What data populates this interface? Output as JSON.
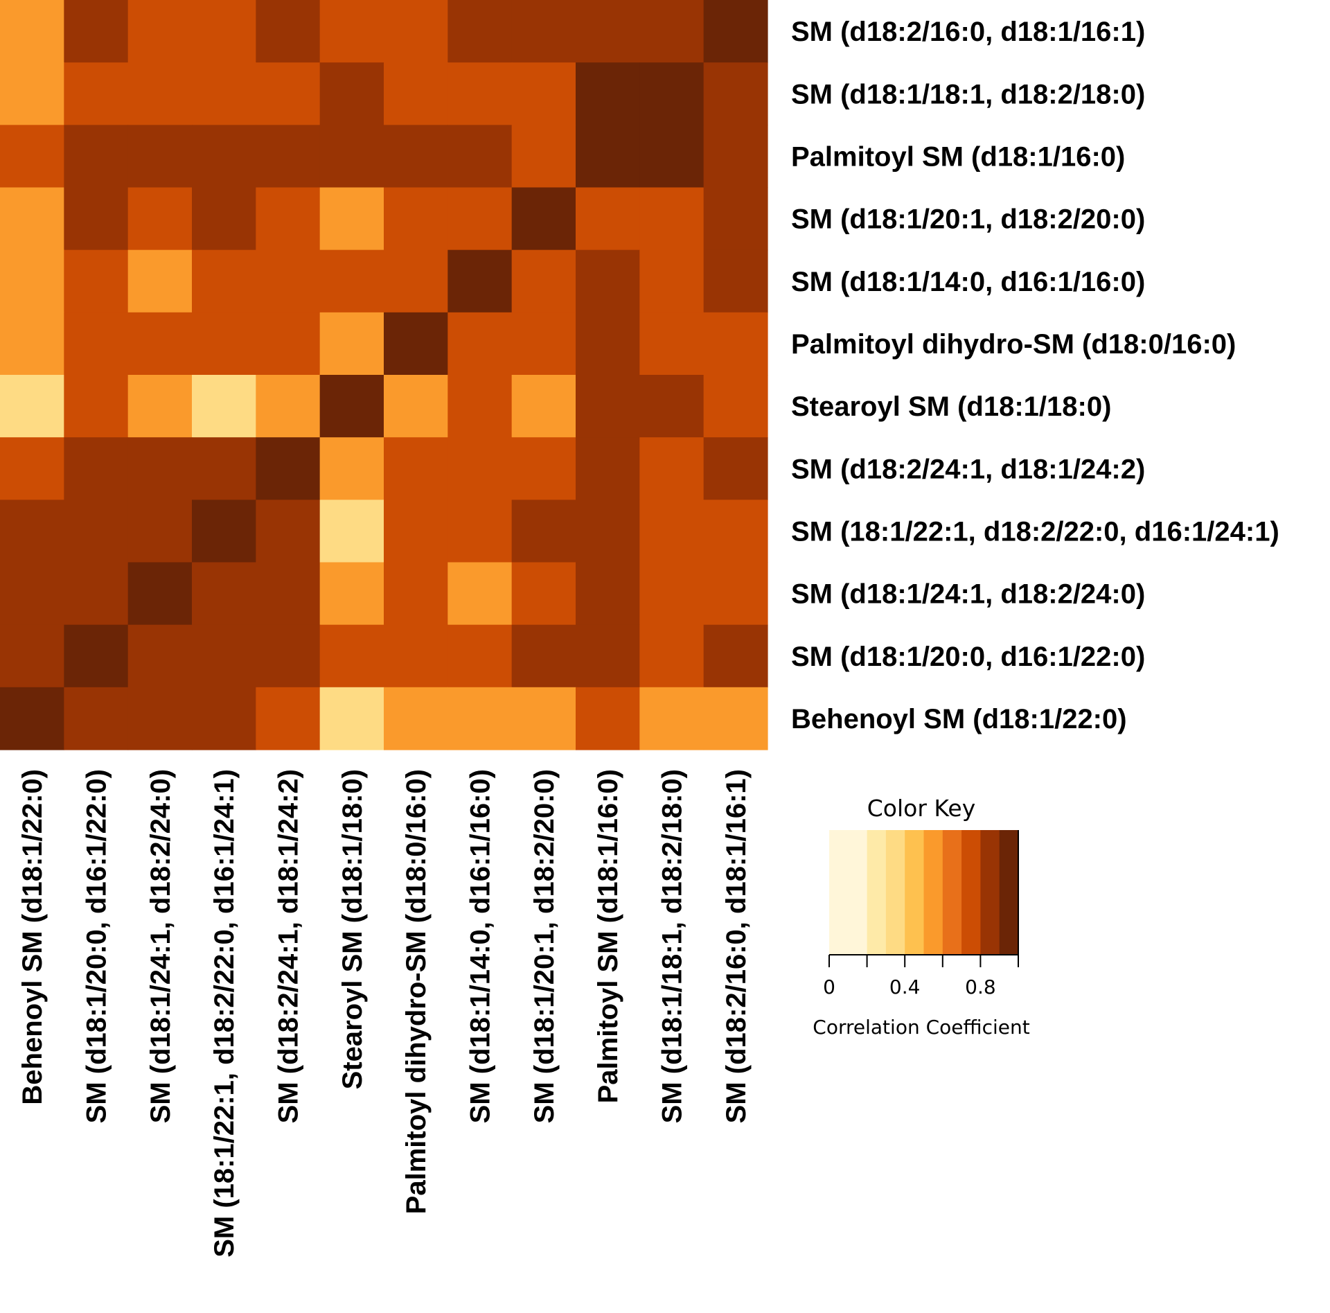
{
  "chart_data": {
    "type": "heatmap",
    "rows": [
      "SM (d18:2/16:0, d18:1/16:1)",
      "SM (d18:1/18:1, d18:2/18:0)",
      "Palmitoyl SM (d18:1/16:0)",
      "SM (d18:1/20:1, d18:2/20:0)",
      "SM (d18:1/14:0, d16:1/16:0)",
      "Palmitoyl dihydro-SM (d18:0/16:0)",
      "Stearoyl SM (d18:1/18:0)",
      "SM (d18:2/24:1, d18:1/24:2)",
      "SM (18:1/22:1, d18:2/22:0, d16:1/24:1)",
      "SM (d18:1/24:1, d18:2/24:0)",
      "SM (d18:1/20:0, d16:1/22:0)",
      "Behenoyl SM (d18:1/22:0)"
    ],
    "columns": [
      "Behenoyl SM (d18:1/22:0)",
      "SM (d18:1/20:0, d16:1/22:0)",
      "SM (d18:1/24:1, d18:2/24:0)",
      "SM (18:1/22:1, d18:2/22:0, d16:1/24:1)",
      "SM (d18:2/24:1, d18:1/24:2)",
      "Stearoyl SM (d18:1/18:0)",
      "Palmitoyl dihydro-SM (d18:0/16:0)",
      "SM (d18:1/14:0, d16:1/16:0)",
      "SM (d18:1/20:1, d18:2/20:0)",
      "Palmitoyl SM (d18:1/16:0)",
      "SM (d18:1/18:1, d18:2/18:0)",
      "SM (d18:2/16:0, d18:1/16:1)"
    ],
    "values": [
      [
        0.6,
        0.85,
        0.75,
        0.75,
        0.85,
        0.75,
        0.75,
        0.85,
        0.85,
        0.85,
        0.85,
        0.95
      ],
      [
        0.6,
        0.75,
        0.75,
        0.75,
        0.75,
        0.85,
        0.75,
        0.75,
        0.75,
        0.95,
        0.95,
        0.85
      ],
      [
        0.75,
        0.85,
        0.85,
        0.85,
        0.85,
        0.85,
        0.85,
        0.85,
        0.75,
        0.95,
        0.95,
        0.85
      ],
      [
        0.6,
        0.85,
        0.75,
        0.85,
        0.75,
        0.6,
        0.75,
        0.75,
        0.95,
        0.75,
        0.75,
        0.85
      ],
      [
        0.6,
        0.75,
        0.6,
        0.75,
        0.75,
        0.75,
        0.75,
        0.95,
        0.75,
        0.85,
        0.75,
        0.85
      ],
      [
        0.6,
        0.75,
        0.75,
        0.75,
        0.75,
        0.6,
        0.95,
        0.75,
        0.75,
        0.85,
        0.75,
        0.75
      ],
      [
        0.45,
        0.75,
        0.6,
        0.45,
        0.6,
        0.95,
        0.6,
        0.75,
        0.6,
        0.85,
        0.85,
        0.75
      ],
      [
        0.75,
        0.85,
        0.85,
        0.85,
        0.95,
        0.6,
        0.75,
        0.75,
        0.75,
        0.85,
        0.75,
        0.85
      ],
      [
        0.85,
        0.85,
        0.85,
        0.95,
        0.85,
        0.45,
        0.75,
        0.75,
        0.85,
        0.85,
        0.75,
        0.75
      ],
      [
        0.85,
        0.85,
        0.95,
        0.85,
        0.85,
        0.6,
        0.75,
        0.6,
        0.75,
        0.85,
        0.75,
        0.75
      ],
      [
        0.85,
        0.95,
        0.85,
        0.85,
        0.85,
        0.75,
        0.75,
        0.75,
        0.85,
        0.85,
        0.75,
        0.85
      ],
      [
        0.95,
        0.85,
        0.85,
        0.85,
        0.75,
        0.45,
        0.6,
        0.6,
        0.6,
        0.75,
        0.6,
        0.6
      ]
    ],
    "color_key": {
      "title": "Color Key",
      "axis_label": "Correlation Coefficient",
      "range": [
        0,
        1
      ],
      "bins": [
        0,
        0.1,
        0.2,
        0.3,
        0.4,
        0.5,
        0.6,
        0.7,
        0.8,
        0.9,
        1.0
      ],
      "colors": [
        "#fff6d9",
        "#feeaa8",
        "#fedb84",
        "#fec14f",
        "#fa9a2c",
        "#e8701a",
        "#cc4d04",
        "#993404",
        "#6b2506"
      ],
      "tick_values": [
        0,
        0.2,
        0.4,
        0.6,
        0.8,
        1.0
      ],
      "tick_labels": [
        "0",
        "0.4",
        "0.8"
      ],
      "labeled_tick_values": [
        0,
        0.4,
        0.8
      ]
    }
  }
}
